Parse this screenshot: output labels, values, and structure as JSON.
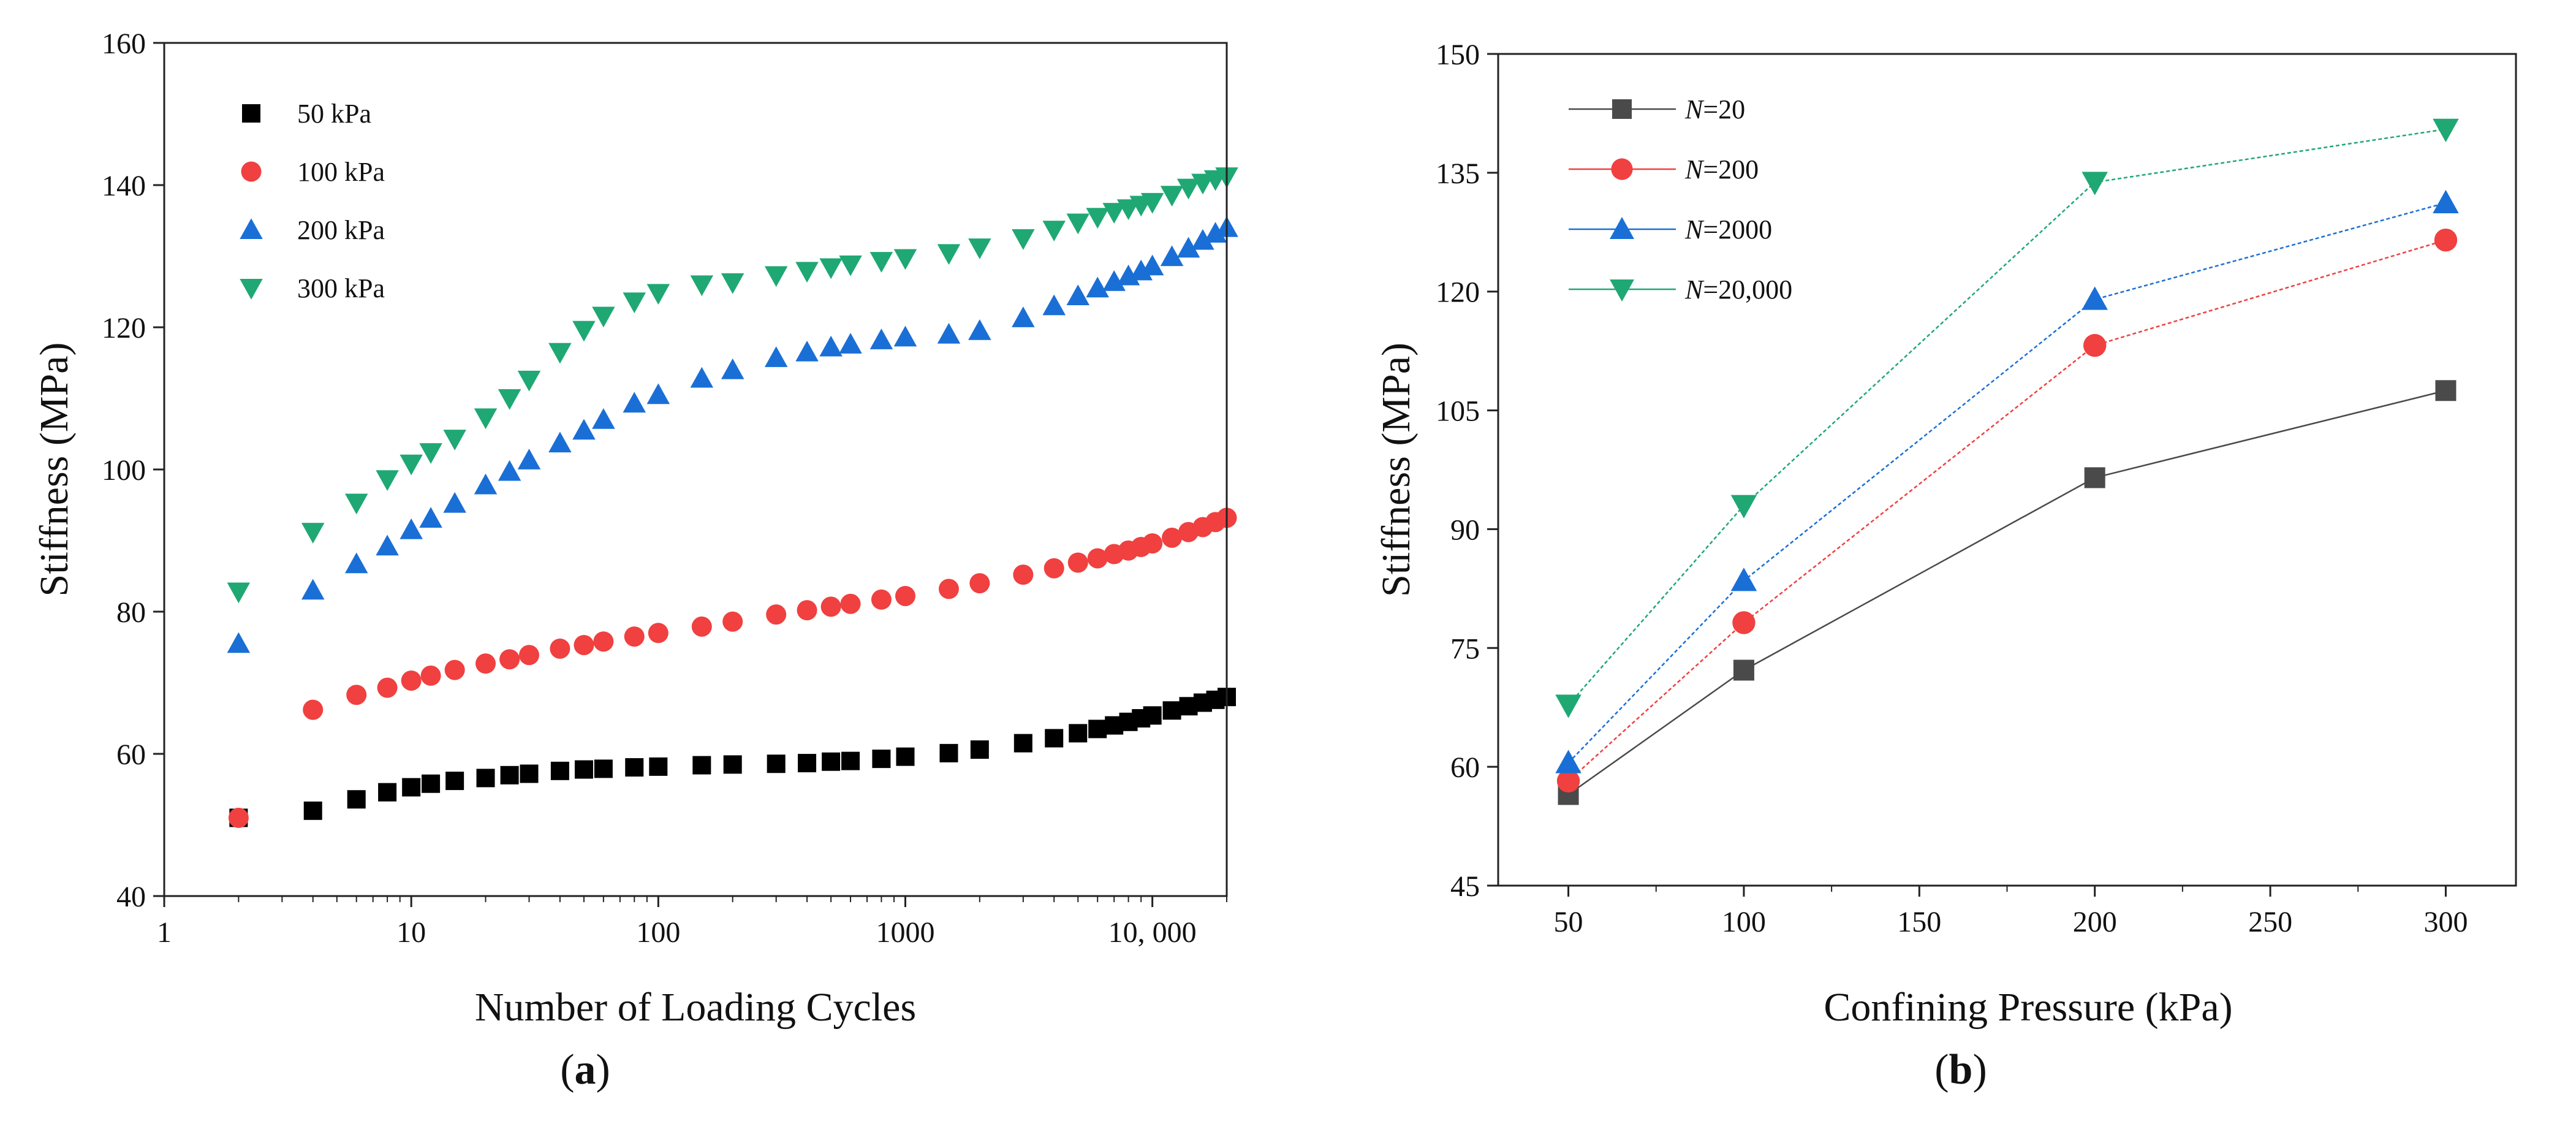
{
  "chart_data": [
    {
      "type": "scatter",
      "panel_label": "a",
      "title": "",
      "xlabel": "Number of Loading Cycles",
      "ylabel": "Stiffness (MPa)",
      "xscale": "log",
      "xlim": [
        1,
        20000
      ],
      "ylim": [
        40,
        160
      ],
      "grid": false,
      "legend_position": "top-left",
      "xticks": [
        {
          "value": 1,
          "label": "1"
        },
        {
          "value": 10,
          "label": "10"
        },
        {
          "value": 100,
          "label": "100"
        },
        {
          "value": 1000,
          "label": "1000"
        },
        {
          "value": 10000,
          "label": "10, 000"
        }
      ],
      "yticks": [
        {
          "value": 40,
          "label": "40"
        },
        {
          "value": 60,
          "label": "60"
        },
        {
          "value": 80,
          "label": "80"
        },
        {
          "value": 100,
          "label": "100"
        },
        {
          "value": 120,
          "label": "120"
        },
        {
          "value": 140,
          "label": "140"
        },
        {
          "value": 160,
          "label": "160"
        }
      ],
      "series": [
        {
          "name": "50 kPa",
          "color": "#000000",
          "marker": "square",
          "x": [
            2,
            4,
            6,
            8,
            10,
            12,
            15,
            20,
            25,
            30,
            40,
            50,
            60,
            80,
            100,
            150,
            200,
            300,
            400,
            500,
            600,
            800,
            1000,
            1500,
            2000,
            3000,
            4000,
            5000,
            6000,
            7000,
            8000,
            9000,
            10000,
            12000,
            14000,
            16000,
            18000,
            20000
          ],
          "y": [
            51,
            52,
            53.6,
            54.6,
            55.3,
            55.8,
            56.2,
            56.6,
            57,
            57.2,
            57.6,
            57.8,
            57.9,
            58.1,
            58.2,
            58.4,
            58.5,
            58.6,
            58.7,
            58.9,
            59,
            59.3,
            59.6,
            60.1,
            60.6,
            61.5,
            62.2,
            62.9,
            63.5,
            64,
            64.5,
            65,
            65.4,
            66.1,
            66.7,
            67.2,
            67.6,
            68
          ]
        },
        {
          "name": "100 kPa",
          "color": "#f04040",
          "marker": "circle",
          "x": [
            2,
            4,
            6,
            8,
            10,
            12,
            15,
            20,
            25,
            30,
            40,
            50,
            60,
            80,
            100,
            150,
            200,
            300,
            400,
            500,
            600,
            800,
            1000,
            1500,
            2000,
            3000,
            4000,
            5000,
            6000,
            7000,
            8000,
            9000,
            10000,
            12000,
            14000,
            16000,
            18000,
            20000
          ],
          "y": [
            51,
            66.2,
            68.3,
            69.3,
            70.3,
            71,
            71.8,
            72.7,
            73.3,
            73.9,
            74.8,
            75.3,
            75.8,
            76.5,
            77,
            77.9,
            78.6,
            79.6,
            80.2,
            80.7,
            81.1,
            81.7,
            82.2,
            83.2,
            84,
            85.2,
            86.1,
            86.9,
            87.5,
            88.1,
            88.6,
            89.1,
            89.6,
            90.4,
            91.2,
            91.9,
            92.6,
            93.2
          ]
        },
        {
          "name": "200 kPa",
          "color": "#1a6fd6",
          "marker": "triangle-up",
          "x": [
            2,
            4,
            6,
            8,
            10,
            12,
            15,
            20,
            25,
            30,
            40,
            50,
            60,
            80,
            100,
            150,
            200,
            300,
            400,
            500,
            600,
            800,
            1000,
            1500,
            2000,
            3000,
            4000,
            5000,
            6000,
            7000,
            8000,
            9000,
            10000,
            12000,
            14000,
            16000,
            18000,
            20000
          ],
          "y": [
            75.5,
            83,
            86.7,
            89.2,
            91.5,
            93.1,
            95.2,
            97.8,
            99.7,
            101.3,
            103.7,
            105.5,
            107,
            109.3,
            110.5,
            112.8,
            114,
            115.7,
            116.5,
            117.2,
            117.6,
            118.2,
            118.6,
            119,
            119.5,
            121.3,
            123,
            124.4,
            125.5,
            126.4,
            127.2,
            127.9,
            128.6,
            129.9,
            131.1,
            132.2,
            133.2,
            134
          ]
        },
        {
          "name": "300 kPa",
          "color": "#1fa874",
          "marker": "triangle-down",
          "x": [
            2,
            4,
            6,
            8,
            10,
            12,
            15,
            20,
            25,
            30,
            40,
            50,
            60,
            80,
            100,
            150,
            200,
            300,
            400,
            500,
            600,
            800,
            1000,
            1500,
            2000,
            3000,
            4000,
            5000,
            6000,
            7000,
            8000,
            9000,
            10000,
            12000,
            14000,
            16000,
            18000,
            20000
          ],
          "y": [
            82.8,
            91.2,
            95.3,
            98.6,
            100.8,
            102.4,
            104.3,
            107.3,
            110,
            112.6,
            116.5,
            119.6,
            121.6,
            123.6,
            124.8,
            126,
            126.3,
            127.3,
            127.9,
            128.4,
            128.8,
            129.3,
            129.7,
            130.4,
            131.2,
            132.5,
            133.7,
            134.7,
            135.5,
            136.2,
            136.7,
            137.2,
            137.6,
            138.6,
            139.6,
            140.3,
            140.8,
            141.2
          ]
        }
      ]
    },
    {
      "type": "line",
      "panel_label": "b",
      "title": "",
      "xlabel": "Confining Pressure (kPa)",
      "ylabel": "Stiffness (MPa)",
      "xlim": [
        30,
        320
      ],
      "ylim": [
        45,
        150
      ],
      "grid": false,
      "legend_position": "top-left",
      "xticks": [
        {
          "value": 50,
          "label": "50"
        },
        {
          "value": 100,
          "label": "100"
        },
        {
          "value": 150,
          "label": "150"
        },
        {
          "value": 200,
          "label": "200"
        },
        {
          "value": 250,
          "label": "250"
        },
        {
          "value": 300,
          "label": "300"
        }
      ],
      "yticks": [
        {
          "value": 45,
          "label": "45"
        },
        {
          "value": 60,
          "label": "60"
        },
        {
          "value": 75,
          "label": "75"
        },
        {
          "value": 90,
          "label": "90"
        },
        {
          "value": 105,
          "label": "105"
        },
        {
          "value": 120,
          "label": "120"
        },
        {
          "value": 135,
          "label": "135"
        },
        {
          "value": 150,
          "label": "150"
        }
      ],
      "x": [
        50,
        100,
        200,
        300
      ],
      "series": [
        {
          "name_prefix": "N",
          "name_suffix": "=20",
          "color": "#4a4a4a",
          "marker": "square",
          "values": [
            56.5,
            72.2,
            96.5,
            107.5
          ]
        },
        {
          "name_prefix": "N",
          "name_suffix": "=200",
          "color": "#f04040",
          "marker": "circle",
          "values": [
            58.2,
            78.2,
            113.2,
            126.5
          ]
        },
        {
          "name_prefix": "N",
          "name_suffix": "=2000",
          "color": "#1a6fd6",
          "marker": "triangle-up",
          "values": [
            60.5,
            83.5,
            119,
            131.2
          ]
        },
        {
          "name_prefix": "N",
          "name_suffix": "=20,000",
          "color": "#1fa874",
          "marker": "triangle-down",
          "values": [
            67.8,
            93,
            133.8,
            140.5
          ]
        }
      ]
    }
  ]
}
